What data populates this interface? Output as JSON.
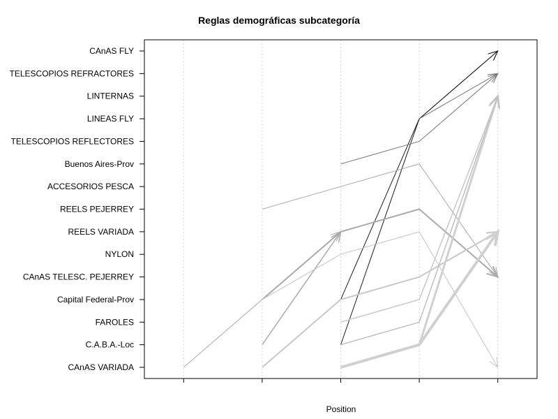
{
  "chart_data": {
    "type": "line",
    "title": "Reglas demográficas subcategoría",
    "xlabel": "Position",
    "ylabel": "",
    "x_positions": [
      1,
      2,
      3,
      4,
      5
    ],
    "categories": [
      "CAnAS VARIADA",
      "C.A.B.A.-Loc",
      "FAROLES",
      "Capital Federal-Prov",
      "CAnAS TELESC. PEJERREY",
      "NYLON",
      "REELS VARIADA",
      "REELS PEJERREY",
      "ACCESORIOS PESCA",
      "Buenos Aires-Prov",
      "TELESCOPIOS REFLECTORES",
      "LINEAS FLY",
      "LINTERNAS",
      "TELESCOPIOS REFRACTORES",
      "CAnAS FLY"
    ],
    "xlim": [
      0.5,
      5.5
    ],
    "grid": "vertical dotted",
    "legend": "none",
    "series": [
      {
        "points": [
          [
            3,
            "C.A.B.A.-Loc"
          ],
          [
            4,
            "LINEAS FLY"
          ],
          [
            5,
            "CAnAS FLY"
          ]
        ],
        "color": "#1a1a1a",
        "width": 1
      },
      {
        "points": [
          [
            3,
            "Capital Federal-Prov"
          ],
          [
            4,
            "LINEAS FLY"
          ],
          [
            5,
            "CAnAS FLY"
          ]
        ],
        "color": "#1a1a1a",
        "width": 1
      },
      {
        "points": [
          [
            3,
            "Buenos Aires-Prov"
          ],
          [
            4,
            "TELESCOPIOS REFLECTORES"
          ],
          [
            5,
            "TELESCOPIOS REFRACTORES"
          ]
        ],
        "color": "#777777",
        "width": 1
      },
      {
        "points": [
          [
            4,
            "LINEAS FLY"
          ],
          [
            5,
            "TELESCOPIOS REFRACTORES"
          ]
        ],
        "color": "#777777",
        "width": 1
      },
      {
        "points": [
          [
            2,
            "REELS PEJERREY"
          ],
          [
            4,
            "Buenos Aires-Prov"
          ],
          [
            5,
            "CAnAS TELESC. PEJERREY"
          ]
        ],
        "color": "#a8a8a8",
        "width": 1
      },
      {
        "points": [
          [
            2,
            "Capital Federal-Prov"
          ],
          [
            3,
            "REELS VARIADA"
          ],
          [
            4,
            "REELS PEJERREY"
          ],
          [
            5,
            "CAnAS TELESC. PEJERREY"
          ]
        ],
        "color": "#aaaaaa",
        "width": 2
      },
      {
        "points": [
          [
            1,
            "CAnAS VARIADA"
          ],
          [
            2,
            "Capital Federal-Prov"
          ],
          [
            3,
            "REELS VARIADA"
          ]
        ],
        "color": "#aaaaaa",
        "width": 1
      },
      {
        "points": [
          [
            2,
            "C.A.B.A.-Loc"
          ],
          [
            3,
            "REELS VARIADA"
          ]
        ],
        "color": "#aaaaaa",
        "width": 1.5
      },
      {
        "points": [
          [
            2,
            "Capital Federal-Prov"
          ],
          [
            3,
            "NYLON"
          ],
          [
            4,
            "REELS VARIADA"
          ],
          [
            5,
            "CAnAS VARIADA"
          ]
        ],
        "color": "#c4c4c4",
        "width": 1
      },
      {
        "points": [
          [
            2,
            "CAnAS VARIADA"
          ],
          [
            3,
            "Capital Federal-Prov"
          ],
          [
            4,
            "CAnAS TELESC. PEJERREY"
          ],
          [
            5,
            "REELS VARIADA"
          ]
        ],
        "color": "#c8c8c8",
        "width": 2
      },
      {
        "points": [
          [
            3,
            "FAROLES"
          ],
          [
            4,
            "Capital Federal-Prov"
          ],
          [
            5,
            "LINTERNAS"
          ]
        ],
        "color": "#c8c8c8",
        "width": 1.5
      },
      {
        "points": [
          [
            3,
            "CAnAS VARIADA"
          ],
          [
            4,
            "C.A.B.A.-Loc"
          ],
          [
            5,
            "REELS VARIADA"
          ]
        ],
        "color": "#d0d0d0",
        "width": 4
      },
      {
        "points": [
          [
            4,
            "C.A.B.A.-Loc"
          ],
          [
            5,
            "LINTERNAS"
          ]
        ],
        "color": "#d0d0d0",
        "width": 3
      },
      {
        "points": [
          [
            3,
            "C.A.B.A.-Loc"
          ],
          [
            4,
            "FAROLES"
          ],
          [
            5,
            "LINTERNAS"
          ]
        ],
        "color": "#c0c0c0",
        "width": 1.5
      }
    ]
  }
}
